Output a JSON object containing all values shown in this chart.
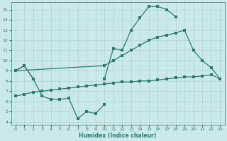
{
  "xlabel": "Humidex (Indice chaleur)",
  "bg_color": "#cce9e9",
  "grid_color": "#aad4d4",
  "line_color": "#2a7a72",
  "xlim_min": -0.5,
  "xlim_max": 23.5,
  "ylim_min": 3.7,
  "ylim_max": 15.7,
  "xticks": [
    0,
    1,
    2,
    3,
    4,
    5,
    6,
    7,
    8,
    9,
    10,
    11,
    12,
    13,
    14,
    15,
    16,
    17,
    18,
    19,
    20,
    21,
    22,
    23
  ],
  "yticks": [
    4,
    5,
    6,
    7,
    8,
    9,
    10,
    11,
    12,
    13,
    14,
    15
  ],
  "series": [
    {
      "segments": [
        {
          "x": [
            0,
            1,
            2,
            3,
            4,
            5,
            6,
            7,
            8,
            9,
            10
          ],
          "y": [
            9,
            9.5,
            8.2,
            6.5,
            6.2,
            6.2,
            6.3,
            4.3,
            5.0,
            4.8,
            5.7
          ]
        }
      ]
    },
    {
      "segments": [
        {
          "x": [
            0,
            1,
            2
          ],
          "y": [
            9,
            9.5,
            8.2
          ]
        },
        {
          "x": [
            10,
            11,
            12,
            13,
            14,
            15,
            16,
            17,
            18
          ],
          "y": [
            8.2,
            11.2,
            11.0,
            13.0,
            14.2,
            15.3,
            15.3,
            15.0,
            14.3
          ]
        }
      ]
    },
    {
      "segments": [
        {
          "x": [
            0,
            10,
            11,
            12,
            13,
            14,
            15,
            16,
            17,
            18,
            19,
            20,
            21,
            22,
            23
          ],
          "y": [
            9,
            9.5,
            10.0,
            10.5,
            11.0,
            11.5,
            12.0,
            12.3,
            12.5,
            12.7,
            13.0,
            11.0,
            10.0,
            9.3,
            8.2
          ]
        }
      ]
    },
    {
      "segments": [
        {
          "x": [
            0,
            1,
            2,
            3,
            4,
            5,
            6,
            7,
            8,
            9,
            10,
            11,
            12,
            13,
            14,
            15,
            16,
            17,
            18,
            19,
            20,
            21,
            22,
            23
          ],
          "y": [
            6.5,
            6.7,
            6.9,
            7.0,
            7.1,
            7.2,
            7.3,
            7.4,
            7.5,
            7.6,
            7.7,
            7.8,
            7.9,
            7.9,
            8.0,
            8.0,
            8.1,
            8.2,
            8.3,
            8.4,
            8.4,
            8.5,
            8.6,
            8.2
          ]
        }
      ]
    }
  ]
}
